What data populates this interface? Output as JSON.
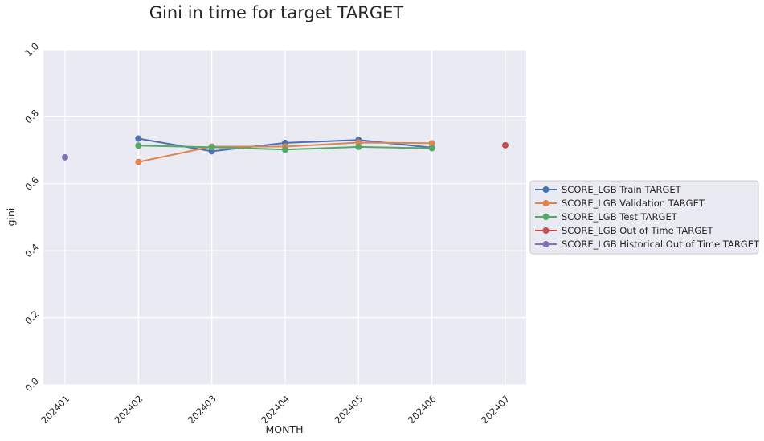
{
  "chart_data": {
    "type": "line",
    "title": "Gini in time for target TARGET",
    "xlabel": "MONTH",
    "ylabel": "gini",
    "categories": [
      "202401",
      "202402",
      "202403",
      "202404",
      "202405",
      "202406",
      "202407"
    ],
    "ylim": [
      0.0,
      1.0
    ],
    "yticks": [
      "0.0",
      "0.2",
      "0.4",
      "0.6",
      "0.8",
      "1.0"
    ],
    "grid": true,
    "legend_position": "right",
    "series": [
      {
        "name": "SCORE_LGB Train TARGET",
        "color": "#4c72b0",
        "values": [
          null,
          0.735,
          0.697,
          0.722,
          0.731,
          0.708,
          null
        ]
      },
      {
        "name": "SCORE_LGB Validation TARGET",
        "color": "#dd8452",
        "values": [
          null,
          0.665,
          0.711,
          0.711,
          0.723,
          0.721,
          null
        ]
      },
      {
        "name": "SCORE_LGB Test TARGET",
        "color": "#55a868",
        "values": [
          null,
          0.714,
          0.709,
          0.702,
          0.71,
          0.706,
          null
        ]
      },
      {
        "name": "SCORE_LGB Out of Time TARGET",
        "color": "#c44e52",
        "values": [
          null,
          null,
          null,
          null,
          null,
          null,
          0.715
        ]
      },
      {
        "name": "SCORE_LGB Historical Out of Time TARGET",
        "color": "#8172b3",
        "values": [
          0.679,
          null,
          null,
          null,
          null,
          null,
          null
        ]
      }
    ]
  }
}
